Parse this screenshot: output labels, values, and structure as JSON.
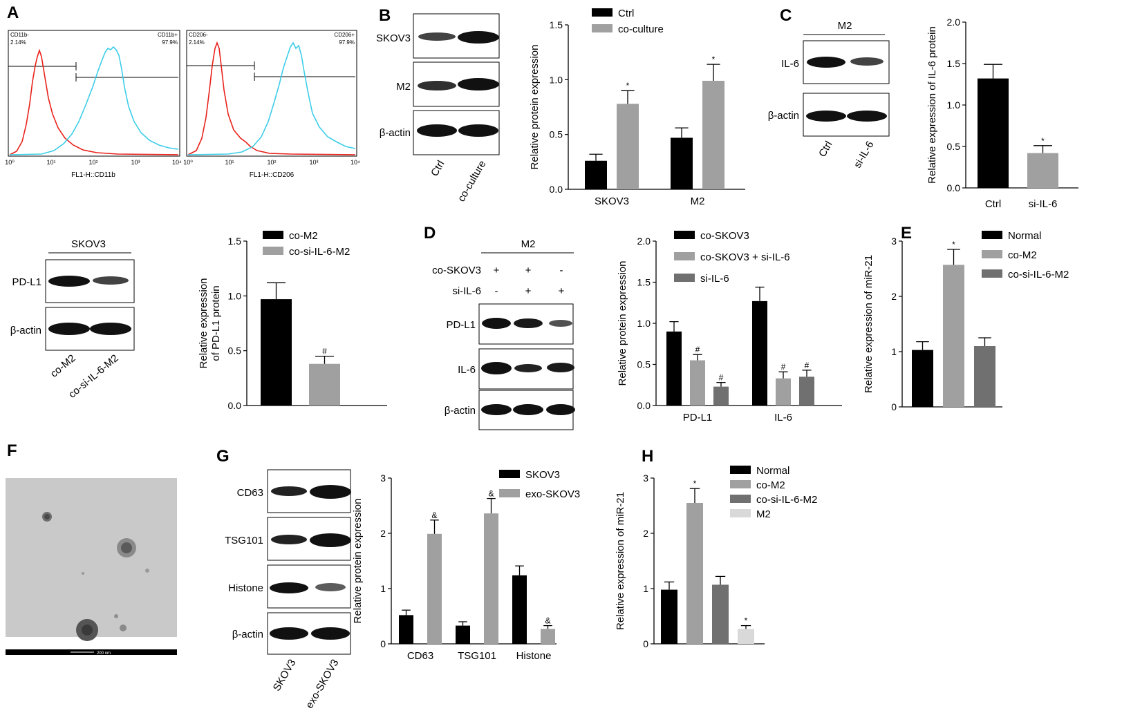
{
  "panel_letters": {
    "A": "A",
    "B": "B",
    "C": "C",
    "D": "D",
    "E": "E",
    "F": "F",
    "G": "G",
    "H": "H"
  },
  "flow": [
    {
      "xlabel": "FL1-H::CD11b",
      "gate_left_name": "CD11b-",
      "gate_left_pct": "2.14%",
      "gate_right_name": "CD11b+",
      "gate_right_pct": "97.9%"
    },
    {
      "xlabel": "FL1-H::CD206",
      "gate_left_name": "CD206-",
      "gate_left_pct": "2.14%",
      "gate_right_name": "CD206+",
      "gate_right_pct": "97.9%"
    }
  ],
  "flow_ticks": [
    "10⁰",
    "10¹",
    "10²",
    "10³",
    "10⁴"
  ],
  "blots": {
    "B": {
      "rows": [
        "SKOV3",
        "M2",
        "β-actin"
      ],
      "lanes": [
        "Ctrl",
        "co-culture"
      ]
    },
    "C": {
      "header": "M2",
      "rows": [
        "IL-6",
        "β-actin"
      ],
      "lanes": [
        "Ctrl",
        "si-IL-6"
      ]
    },
    "PDL1": {
      "header": "SKOV3",
      "rows": [
        "PD-L1",
        "β-actin"
      ],
      "lanes": [
        "co-M2",
        "co-si-IL-6-M2"
      ]
    },
    "D": {
      "header": "M2",
      "cond_rows": [
        {
          "label": "co-SKOV3",
          "signs": [
            "+",
            "+",
            "-"
          ]
        },
        {
          "label": "si-IL-6",
          "signs": [
            "-",
            "+",
            "+"
          ]
        }
      ],
      "rows": [
        "PD-L1",
        "IL-6",
        "β-actin"
      ]
    },
    "G": {
      "rows": [
        "CD63",
        "TSG101",
        "Histone",
        "β-actin"
      ],
      "lanes": [
        "SKOV3",
        "exo-SKOV3"
      ]
    }
  },
  "tem": {
    "scale_label": "200 nm"
  },
  "chart_data": [
    {
      "id": "B",
      "type": "bar",
      "ylabel": "Relative protein expression",
      "ylim": [
        0,
        1.5
      ],
      "yticks": [
        "0.0",
        "0.5",
        "1.0",
        "1.5"
      ],
      "categories": [
        "SKOV3",
        "M2"
      ],
      "series": [
        {
          "name": "Ctrl",
          "color": "#000000",
          "values": [
            0.26,
            0.47
          ],
          "errors": [
            0.06,
            0.09
          ],
          "marks": [
            "",
            ""
          ]
        },
        {
          "name": "co-culture",
          "color": "#a0a0a0",
          "values": [
            0.78,
            0.99
          ],
          "errors": [
            0.12,
            0.15
          ],
          "marks": [
            "*",
            "*"
          ]
        }
      ],
      "legend": "top-left"
    },
    {
      "id": "C",
      "type": "bar",
      "ylabel": "Relative expression of IL-6 protein",
      "ylim": [
        0,
        2.0
      ],
      "yticks": [
        "0.0",
        "0.5",
        "1.0",
        "1.5",
        "2.0"
      ],
      "categories": [
        "Ctrl",
        "si-IL-6"
      ],
      "series": [
        {
          "name": "",
          "colors": [
            "#000000",
            "#a0a0a0"
          ],
          "values": [
            1.32,
            0.42
          ],
          "errors": [
            0.17,
            0.09
          ],
          "marks": [
            "",
            "*"
          ]
        }
      ]
    },
    {
      "id": "PDL1",
      "type": "bar",
      "ylabel": "Relative expression of PD-L1 protein",
      "ylim": [
        0,
        1.5
      ],
      "yticks": [
        "0.0",
        "0.5",
        "1.0",
        "1.5"
      ],
      "categories": [
        "",
        ""
      ],
      "series": [
        {
          "name": "",
          "colors": [
            "#000000",
            "#a0a0a0"
          ],
          "values": [
            0.97,
            0.38
          ],
          "errors": [
            0.15,
            0.07
          ],
          "marks": [
            "",
            "#"
          ]
        }
      ],
      "legend_items": [
        {
          "name": "co-M2",
          "color": "#000000"
        },
        {
          "name": "co-si-IL-6-M2",
          "color": "#a0a0a0"
        }
      ],
      "legend": "top-left"
    },
    {
      "id": "D",
      "type": "bar",
      "ylabel": "Relative protein expression",
      "ylim": [
        0,
        2.0
      ],
      "yticks": [
        "0.0",
        "0.5",
        "1.0",
        "1.5",
        "2.0"
      ],
      "categories": [
        "PD-L1",
        "IL-6"
      ],
      "series": [
        {
          "name": "co-SKOV3",
          "color": "#000000",
          "values": [
            0.9,
            1.27
          ],
          "errors": [
            0.12,
            0.17
          ],
          "marks": [
            "",
            ""
          ]
        },
        {
          "name": "co-SKOV3 + si-IL-6",
          "color": "#a0a0a0",
          "values": [
            0.55,
            0.33
          ],
          "errors": [
            0.07,
            0.08
          ],
          "marks": [
            "#",
            "#"
          ]
        },
        {
          "name": "si-IL-6",
          "color": "#707070",
          "values": [
            0.23,
            0.35
          ],
          "errors": [
            0.05,
            0.08
          ],
          "marks": [
            "#",
            "#"
          ]
        }
      ],
      "legend": "top-left"
    },
    {
      "id": "E",
      "type": "bar",
      "ylabel": "Relative expression of miR-21",
      "ylim": [
        0,
        3
      ],
      "yticks": [
        "0",
        "1",
        "2",
        "3"
      ],
      "categories": [
        "",
        "",
        ""
      ],
      "series": [
        {
          "name": "",
          "colors": [
            "#000000",
            "#a0a0a0",
            "#707070"
          ],
          "values": [
            1.03,
            2.57,
            1.1
          ],
          "errors": [
            0.15,
            0.28,
            0.15
          ],
          "marks": [
            "",
            "*",
            ""
          ]
        }
      ],
      "legend_items": [
        {
          "name": "Normal",
          "color": "#000000"
        },
        {
          "name": "co-M2",
          "color": "#a0a0a0"
        },
        {
          "name": "co-si-IL-6-M2",
          "color": "#707070"
        }
      ],
      "legend": "top-right"
    },
    {
      "id": "G",
      "type": "bar",
      "ylabel": "Relative protein expression",
      "ylim": [
        0,
        3
      ],
      "yticks": [
        "0",
        "1",
        "2",
        "3"
      ],
      "categories": [
        "CD63",
        "TSG101",
        "Histone"
      ],
      "series": [
        {
          "name": "SKOV3",
          "color": "#000000",
          "values": [
            0.52,
            0.33,
            1.24
          ],
          "errors": [
            0.09,
            0.07,
            0.17
          ],
          "marks": [
            "",
            "",
            ""
          ]
        },
        {
          "name": "exo-SKOV3",
          "color": "#a0a0a0",
          "values": [
            1.99,
            2.36,
            0.27
          ],
          "errors": [
            0.25,
            0.27,
            0.06
          ],
          "marks": [
            "&",
            "&",
            "&"
          ]
        }
      ],
      "legend": "top-right"
    },
    {
      "id": "H",
      "type": "bar",
      "ylabel": "Relative expression of miR-21",
      "ylim": [
        0,
        3
      ],
      "yticks": [
        "0",
        "1",
        "2",
        "3"
      ],
      "categories": [
        "",
        "",
        "",
        ""
      ],
      "series": [
        {
          "name": "",
          "colors": [
            "#000000",
            "#a0a0a0",
            "#707070",
            "#d9d9d9"
          ],
          "values": [
            0.98,
            2.55,
            1.07,
            0.27
          ],
          "errors": [
            0.14,
            0.26,
            0.15,
            0.06
          ],
          "marks": [
            "",
            "*",
            "",
            "*"
          ]
        }
      ],
      "legend_items": [
        {
          "name": "Normal",
          "color": "#000000"
        },
        {
          "name": "co-M2",
          "color": "#a0a0a0"
        },
        {
          "name": "co-si-IL-6-M2",
          "color": "#707070"
        },
        {
          "name": "M2",
          "color": "#d9d9d9"
        }
      ],
      "legend": "top-right"
    }
  ]
}
